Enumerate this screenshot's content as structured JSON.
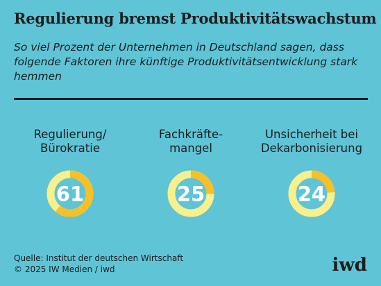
{
  "title": "Regulierung bremst Produktivitätswachstum",
  "subtitle": "So viel Prozent der Unternehmen in Deutschland sagen, dass folgende Faktoren ihre künftige Produktivitätsentwicklung stark hemmen",
  "chart_data": {
    "type": "pie",
    "unit": "%",
    "categories": [
      "Regulierung/\nBürokratie",
      "Fachkräfte-\nmangel",
      "Unsicherheit bei\nDekarbonisierung"
    ],
    "values": [
      61,
      25,
      24
    ],
    "colors": {
      "share": "#f7bf28",
      "remainder": "#f8ef8d",
      "value_text": "#ffffff"
    }
  },
  "source": {
    "line1": "Quelle: Institut der deutschen Wirtschaft",
    "line2": "© 2025 IW Medien / iwd"
  },
  "logo": "iwd"
}
